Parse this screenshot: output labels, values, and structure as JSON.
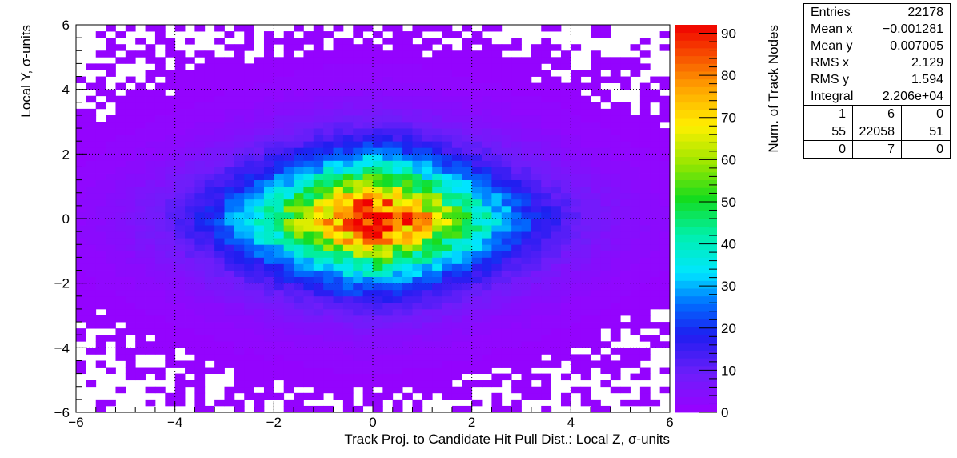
{
  "chart_data": {
    "type": "heatmap",
    "title": "",
    "xlabel": "Track Proj. to Candidate Hit Pull Dist.: Local Z, σ-units",
    "ylabel": "Local Y, σ-units",
    "zlabel": "Num. of Track Nodes",
    "xlim": [
      -6,
      6
    ],
    "ylim": [
      -6,
      6
    ],
    "zlim": [
      0,
      92
    ],
    "x_ticks": [
      "−6",
      "−4",
      "−2",
      "0",
      "2",
      "4",
      "6"
    ],
    "y_ticks": [
      "−6",
      "−4",
      "−2",
      "0",
      "2",
      "4",
      "6"
    ],
    "z_ticks": [
      "0",
      "10",
      "20",
      "30",
      "40",
      "50",
      "60",
      "70",
      "80",
      "90"
    ],
    "bins": {
      "nx": 60,
      "ny": 60,
      "x_width": 0.2,
      "y_width": 0.2
    },
    "distribution": {
      "mean_x": -0.001281,
      "mean_y": 0.007005,
      "rms_x": 2.129,
      "rms_y": 1.594,
      "peak": 92
    },
    "grid": true,
    "palette": "rainbow",
    "stats": {
      "rows": [
        {
          "label": "Entries",
          "value": "22178"
        },
        {
          "label": "Mean x",
          "value": "−0.001281"
        },
        {
          "label": "Mean y",
          "value": "0.007005"
        },
        {
          "label": "RMS x",
          "value": "2.129"
        },
        {
          "label": "RMS y",
          "value": "1.594"
        },
        {
          "label": "Integral",
          "value": "2.206e+04"
        }
      ],
      "overflow": [
        [
          "1",
          "6",
          "0"
        ],
        [
          "55",
          "22058",
          "51"
        ],
        [
          "0",
          "7",
          "0"
        ]
      ]
    }
  }
}
